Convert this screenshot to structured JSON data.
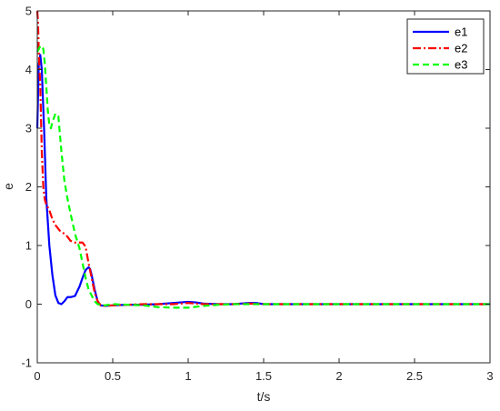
{
  "chart_data": {
    "type": "line",
    "title": "",
    "xlabel": "t/s",
    "ylabel": "e",
    "xlim": [
      0,
      3
    ],
    "ylim": [
      -1,
      5
    ],
    "xticks": [
      0,
      0.5,
      1,
      1.5,
      2,
      2.5,
      3
    ],
    "xtick_labels": [
      "0",
      "0.5",
      "1",
      "1.5",
      "2",
      "2.5",
      "3"
    ],
    "yticks": [
      -1,
      0,
      1,
      2,
      3,
      4,
      5
    ],
    "ytick_labels": [
      "-1",
      "0",
      "1",
      "2",
      "3",
      "4",
      "5"
    ],
    "grid": false,
    "legend_position": "top-right",
    "series": [
      {
        "name": "e1",
        "color": "#0000ff",
        "dash": "solid",
        "x": [
          0,
          0.01,
          0.02,
          0.03,
          0.045,
          0.06,
          0.08,
          0.1,
          0.12,
          0.14,
          0.16,
          0.18,
          0.2,
          0.22,
          0.25,
          0.28,
          0.3,
          0.32,
          0.34,
          0.35,
          0.36,
          0.38,
          0.4,
          0.42,
          0.45,
          0.5,
          0.6,
          0.7,
          0.8,
          0.9,
          1.0,
          1.05,
          1.1,
          1.2,
          1.3,
          1.4,
          1.45,
          1.5,
          1.6,
          1.8,
          2.0,
          2.2,
          2.4,
          2.6,
          2.8,
          3.0
        ],
        "y": [
          3.0,
          4.1,
          4.25,
          4.0,
          3.0,
          1.8,
          1.0,
          0.5,
          0.15,
          0.02,
          0.0,
          0.05,
          0.12,
          0.12,
          0.14,
          0.3,
          0.45,
          0.58,
          0.63,
          0.6,
          0.5,
          0.25,
          0.05,
          -0.02,
          -0.03,
          -0.02,
          -0.01,
          -0.01,
          0.0,
          0.02,
          0.04,
          0.03,
          0.01,
          0.0,
          0.0,
          0.02,
          0.02,
          0.0,
          0.0,
          0.0,
          0.0,
          0.0,
          0.0,
          0.0,
          0.0,
          0.0
        ]
      },
      {
        "name": "e2",
        "color": "#ff0000",
        "dash": "dash-dot",
        "x": [
          0,
          0.005,
          0.01,
          0.02,
          0.03,
          0.04,
          0.05,
          0.06,
          0.08,
          0.1,
          0.12,
          0.15,
          0.18,
          0.2,
          0.22,
          0.25,
          0.28,
          0.3,
          0.32,
          0.34,
          0.36,
          0.38,
          0.4,
          0.42,
          0.45,
          0.5,
          0.6,
          0.7,
          0.8,
          0.9,
          1.0,
          1.1,
          1.2,
          1.3,
          1.4,
          1.5,
          1.6,
          1.8,
          2.0,
          2.2,
          2.4,
          2.6,
          2.8,
          3.0
        ],
        "y": [
          5.0,
          4.8,
          4.3,
          3.7,
          2.6,
          2.0,
          1.78,
          1.7,
          1.6,
          1.45,
          1.35,
          1.25,
          1.2,
          1.15,
          1.08,
          1.05,
          1.05,
          1.05,
          0.98,
          0.7,
          0.45,
          0.2,
          0.05,
          -0.02,
          -0.03,
          -0.02,
          -0.01,
          0.0,
          0.0,
          0.0,
          0.02,
          0.0,
          0.0,
          0.0,
          0.01,
          0.0,
          0.0,
          0.0,
          0.0,
          0.0,
          0.0,
          0.0,
          0.0,
          0.0
        ]
      },
      {
        "name": "e3",
        "color": "#00ff00",
        "dash": "dashed",
        "x": [
          0,
          0.01,
          0.02,
          0.03,
          0.04,
          0.05,
          0.06,
          0.07,
          0.08,
          0.09,
          0.1,
          0.12,
          0.14,
          0.16,
          0.18,
          0.2,
          0.22,
          0.25,
          0.28,
          0.3,
          0.32,
          0.34,
          0.36,
          0.38,
          0.4,
          0.42,
          0.45,
          0.5,
          0.6,
          0.7,
          0.8,
          0.9,
          1.0,
          1.1,
          1.2,
          1.3,
          1.4,
          1.6,
          1.8,
          2.0,
          2.2,
          2.4,
          2.6,
          2.8,
          3.0
        ],
        "y": [
          4.3,
          4.35,
          4.4,
          4.4,
          4.35,
          4.1,
          3.7,
          3.3,
          3.05,
          3.0,
          3.1,
          3.25,
          3.2,
          2.6,
          2.1,
          1.8,
          1.55,
          1.2,
          0.95,
          0.7,
          0.45,
          0.25,
          0.15,
          0.05,
          0.0,
          -0.01,
          -0.02,
          0.0,
          -0.01,
          -0.02,
          -0.05,
          -0.06,
          -0.06,
          -0.03,
          -0.01,
          0.0,
          0.0,
          0.0,
          0.0,
          0.0,
          0.0,
          0.0,
          0.0,
          0.0,
          0.0
        ]
      }
    ]
  }
}
